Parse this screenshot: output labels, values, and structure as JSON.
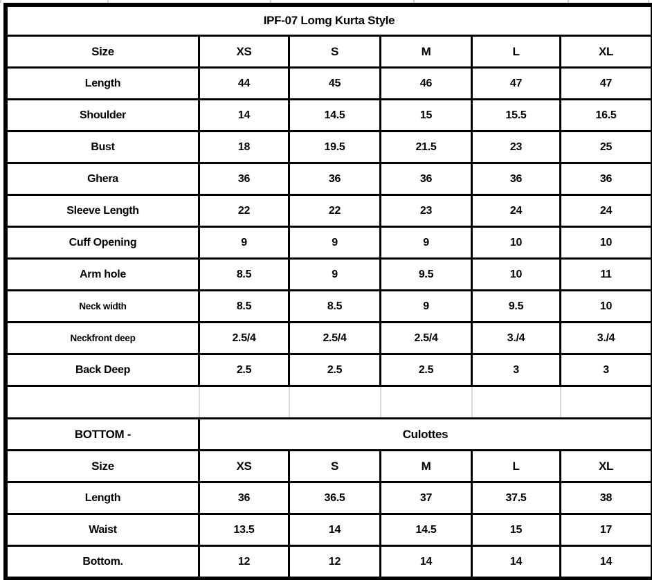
{
  "sheet": {
    "title": "IPF-07 Lomg Kurta Style",
    "kurta_table": {
      "header": [
        "Size",
        "XS",
        "S",
        "M",
        "L",
        "XL"
      ],
      "rows": [
        {
          "label": "Length",
          "values": [
            "44",
            "45",
            "46",
            "47",
            "47"
          ]
        },
        {
          "label": "Shoulder",
          "values": [
            "14",
            "14.5",
            "15",
            "15.5",
            "16.5"
          ]
        },
        {
          "label": "Bust",
          "values": [
            "18",
            "19.5",
            "21.5",
            "23",
            "25"
          ]
        },
        {
          "label": "Ghera",
          "values": [
            "36",
            "36",
            "36",
            "36",
            "36"
          ]
        },
        {
          "label": "Sleeve Length",
          "values": [
            "22",
            "22",
            "23",
            "24",
            "24"
          ]
        },
        {
          "label": "Cuff Opening",
          "values": [
            "9",
            "9",
            "9",
            "10",
            "10"
          ]
        },
        {
          "label": "Arm hole",
          "values": [
            "8.5",
            "9",
            "9.5",
            "10",
            "11"
          ]
        },
        {
          "label": "Neck width",
          "values": [
            "8.5",
            "8.5",
            "9",
            "9.5",
            "10"
          ],
          "small_label": true
        },
        {
          "label": "Neckfront deep",
          "values": [
            "2.5/4",
            "2.5/4",
            "2.5/4",
            "3./4",
            "3./4"
          ],
          "small_label": true
        },
        {
          "label": "Back Deep",
          "values": [
            "2.5",
            "2.5",
            "2.5",
            "3",
            "3"
          ]
        }
      ]
    },
    "bottom_table": {
      "section_label": "BOTTOM -",
      "section_value": "Culottes",
      "header": [
        "Size",
        "XS",
        "S",
        "M",
        "L",
        "XL"
      ],
      "rows": [
        {
          "label": "Length",
          "values": [
            "36",
            "36.5",
            "37",
            "37.5",
            "38"
          ]
        },
        {
          "label": "Waist",
          "values": [
            "13.5",
            "14",
            "14.5",
            "15",
            "17"
          ]
        },
        {
          "label": "Bottom.",
          "values": [
            "12",
            "12",
            "14",
            "14",
            "14"
          ]
        }
      ]
    },
    "colors": {
      "border": "#000000",
      "gridline": "#d9d9d9",
      "background": "#ffffff",
      "text": "#000000"
    }
  },
  "chart_data": [
    {
      "type": "table",
      "title": "IPF-07 Lomg Kurta Style",
      "columns": [
        "Size",
        "XS",
        "S",
        "M",
        "L",
        "XL"
      ],
      "rows": [
        [
          "Length",
          "44",
          "45",
          "46",
          "47",
          "47"
        ],
        [
          "Shoulder",
          "14",
          "14.5",
          "15",
          "15.5",
          "16.5"
        ],
        [
          "Bust",
          "18",
          "19.5",
          "21.5",
          "23",
          "25"
        ],
        [
          "Ghera",
          "36",
          "36",
          "36",
          "36",
          "36"
        ],
        [
          "Sleeve Length",
          "22",
          "22",
          "23",
          "24",
          "24"
        ],
        [
          "Cuff Opening",
          "9",
          "9",
          "9",
          "10",
          "10"
        ],
        [
          "Arm hole",
          "8.5",
          "9",
          "9.5",
          "10",
          "11"
        ],
        [
          "Neck width",
          "8.5",
          "8.5",
          "9",
          "9.5",
          "10"
        ],
        [
          "Neckfront deep",
          "2.5/4",
          "2.5/4",
          "2.5/4",
          "3./4",
          "3./4"
        ],
        [
          "Back Deep",
          "2.5",
          "2.5",
          "2.5",
          "3",
          "3"
        ]
      ]
    },
    {
      "type": "table",
      "title": "BOTTOM - Culottes",
      "columns": [
        "Size",
        "XS",
        "S",
        "M",
        "L",
        "XL"
      ],
      "rows": [
        [
          "Length",
          "36",
          "36.5",
          "37",
          "37.5",
          "38"
        ],
        [
          "Waist",
          "13.5",
          "14",
          "14.5",
          "15",
          "17"
        ],
        [
          "Bottom.",
          "12",
          "12",
          "14",
          "14",
          "14"
        ]
      ]
    }
  ]
}
